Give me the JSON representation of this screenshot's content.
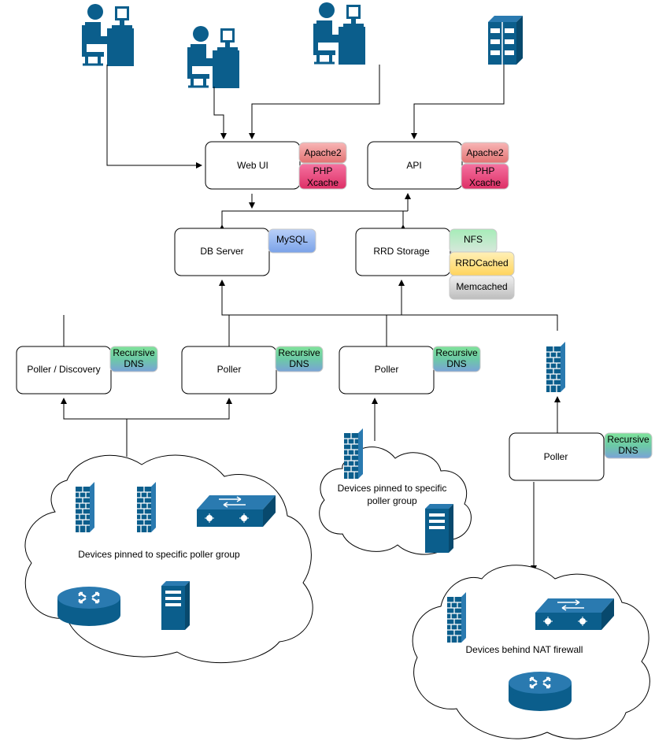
{
  "nodes": {
    "web_ui": "Web UI",
    "api": "API",
    "db_server": "DB Server",
    "rrd_storage": "RRD Storage",
    "poller_discovery": "Poller / Discovery",
    "poller_1": "Poller",
    "poller_2": "Poller",
    "poller_nat": "Poller"
  },
  "tags": {
    "apache2": "Apache2",
    "php": "PHP",
    "xcache": "Xcache",
    "mysql": "MySQL",
    "nfs": "NFS",
    "rrdcached": "RRDCached",
    "memcached": "Memcached",
    "recursive": "Recursive",
    "dns": "DNS"
  },
  "clouds": {
    "left": "Devices pinned to specific poller group",
    "middle_line1": "Devices pinned to specific",
    "middle_line2": "poller group",
    "right": "Devices behind NAT firewall"
  },
  "colors": {
    "icon": "#0b5e8c",
    "tag_red": "#f08c8c",
    "tag_pink": "#e8487a",
    "tag_blue": "#8fb4f0",
    "tag_green": "#7fd99a",
    "tag_yellow": "#ffe08a",
    "tag_gray": "#d9d9d9"
  },
  "icons": [
    "user-workstation-icon",
    "server-rack-icon",
    "firewall-icon",
    "switch-icon",
    "router-icon",
    "server-tower-icon"
  ]
}
